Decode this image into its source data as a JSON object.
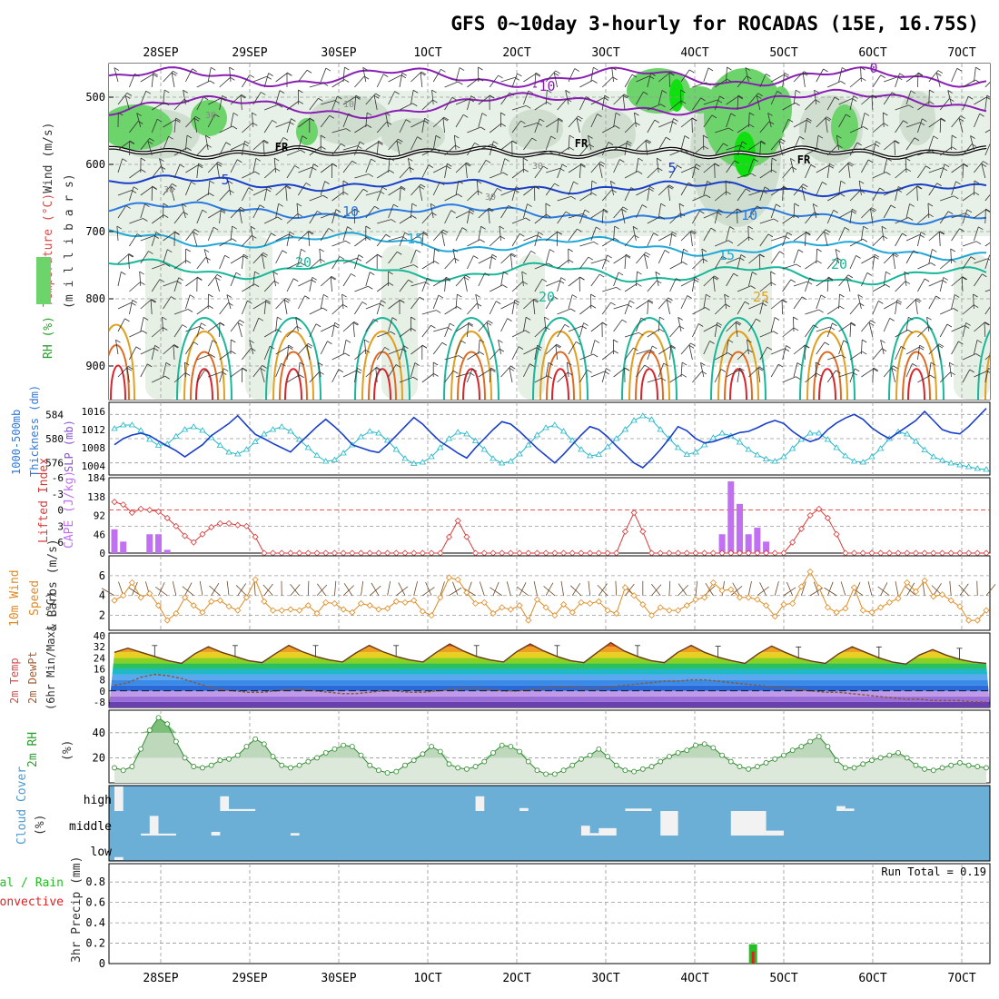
{
  "title": "GFS 0~10day 3-hourly for ROCADAS (15E, 16.75S)",
  "dates": [
    "28SEP",
    "29SEP",
    "30SEP",
    "1OCT",
    "2OCT",
    "3OCT",
    "4OCT",
    "5OCT",
    "6OCT",
    "7OCT"
  ],
  "colors": {
    "purple": "#8a1fb4",
    "blue_dark": "#1a3fc8",
    "blue": "#2a7ae0",
    "cyan": "#22a8d8",
    "teal": "#18b79a",
    "orange": "#e0a020",
    "orange_dark": "#e06a20",
    "red": "#d8242c",
    "rh_light": "#e6efe4",
    "rh_mid": "#cfdccd",
    "rh_green": "#6cd46a",
    "rh_bright": "#10e010",
    "thickness": "#1a3fc8",
    "slp": "#20b8c8",
    "lifted": "#d83a3a",
    "cape": "#c070f0",
    "wind10m": "#e08a20",
    "rh2m": "#2e8b2e",
    "cloud": "#6baed6",
    "precip_total": "#22c022",
    "precip_conv": "#e02020"
  },
  "panels": [
    {
      "id": "upper_air",
      "ylabel_parts": [
        {
          "text": "RH (%)",
          "color": "#2ca02c"
        },
        {
          "text": "Temperature (°C)",
          "color": "#d84c4c"
        },
        {
          "text": "Wind (m/s)",
          "color": "#333333"
        }
      ],
      "ylabel2": "(m i l l i b a r s)",
      "yticks": [
        "500",
        "600",
        "700",
        "800",
        "900"
      ],
      "contour_labels": [
        "-10",
        "0",
        "FR",
        "FR",
        "FR",
        "5",
        "5",
        "10",
        "10",
        "15",
        "15",
        "20",
        "20",
        "20",
        "25",
        "30",
        "30",
        "30",
        "10",
        "30"
      ]
    },
    {
      "id": "thickness_slp",
      "ylabel_left": "1000-500mb",
      "ylabel_left2": "Thickness (dm)",
      "ylabel_right": "SLP (mb)",
      "yticks_left": [
        "584",
        "580",
        "576"
      ],
      "yticks_right": [
        "1016",
        "1012",
        "1008",
        "1004"
      ]
    },
    {
      "id": "lifted_cape",
      "ylabel_left": "Lifted Index",
      "ylabel_right": "CAPE (J/kg)",
      "yticks_left": [
        "-6",
        "-3",
        "0",
        "3",
        "6"
      ],
      "yticks_right": [
        "184",
        "138",
        "92",
        "46",
        "0"
      ]
    },
    {
      "id": "wind10m",
      "ylabel": "10m Wind",
      "ylabel2": "Speed",
      "ylabel3": "& Barbs (m/s)",
      "yticks": [
        "6",
        "4",
        "2"
      ]
    },
    {
      "id": "temp2m",
      "ylabel": "2m Temp",
      "ylabel2": "2m DewPt",
      "ylabel3": "(6hr Min/Max) (°C)",
      "yticks": [
        "40",
        "32",
        "24",
        "16",
        "8",
        "0",
        "-8"
      ]
    },
    {
      "id": "rh2m",
      "ylabel": "2m RH",
      "ylabel2": "(%)",
      "yticks": [
        "40",
        "20"
      ]
    },
    {
      "id": "cloud",
      "ylabel": "Cloud Cover",
      "ylabel2": "(%)",
      "levels": [
        "high",
        "middle",
        "low"
      ]
    },
    {
      "id": "precip",
      "ylabel": "Total / Rain",
      "ylabel2": "Convective",
      "ylabel3": "3hr Precip (mm)",
      "yticks": [
        "0.8",
        "0.6",
        "0.4",
        "0.2",
        "0"
      ],
      "run_total": "Run Total = 0.19"
    }
  ],
  "chart_data": {
    "type": "line",
    "time_step_hours": 3,
    "x_axis": [
      "28SEP",
      "29SEP",
      "30SEP",
      "1OCT",
      "2OCT",
      "3OCT",
      "4OCT",
      "5OCT",
      "6OCT",
      "7OCT"
    ],
    "thickness_dm": [
      579.0,
      580.0,
      580.6,
      580.9,
      580.5,
      579.6,
      578.8,
      578.0,
      577.0,
      578.0,
      579.0,
      580.5,
      581.5,
      582.5,
      583.8,
      582.2,
      580.7,
      580.0,
      579.2,
      578.5,
      577.8,
      579.2,
      580.6,
      582.0,
      583.2,
      582.0,
      580.6,
      579.0,
      578.5,
      578.0,
      577.7,
      579.0,
      580.5,
      582.0,
      583.5,
      582.4,
      580.9,
      579.5,
      578.6,
      577.6,
      576.8,
      578.5,
      580.0,
      581.5,
      582.8,
      582.4,
      581.2,
      579.8,
      578.4,
      577.2,
      576.0,
      577.4,
      579.0,
      580.6,
      582.0,
      581.5,
      580.3,
      578.8,
      577.4,
      576.0,
      575.2,
      576.6,
      578.2,
      580.0,
      582.0,
      581.3,
      580.0,
      579.3,
      579.5,
      580.0,
      580.5,
      581.0,
      581.2,
      581.8,
      582.5,
      583.0,
      582.5,
      581.2,
      580.2,
      579.5,
      580.0,
      581.5,
      582.6,
      583.4,
      584.0,
      583.2,
      581.8,
      580.8,
      580.0,
      581.0,
      582.0,
      583.0,
      584.5,
      583.0,
      581.5,
      581.0,
      580.8,
      582.0,
      583.5,
      585.0
    ],
    "slp_mb": [
      1012.2,
      1013.0,
      1013.0,
      1011.8,
      1009.8,
      1008.5,
      1008.8,
      1010.5,
      1012.0,
      1012.6,
      1011.8,
      1010.2,
      1008.5,
      1007.0,
      1006.6,
      1007.6,
      1009.3,
      1011.0,
      1012.0,
      1012.6,
      1011.6,
      1009.8,
      1008.0,
      1006.3,
      1005.0,
      1005.3,
      1006.8,
      1008.6,
      1010.4,
      1011.6,
      1011.2,
      1009.6,
      1007.6,
      1005.6,
      1004.5,
      1004.8,
      1006.0,
      1008.0,
      1010.0,
      1011.4,
      1011.0,
      1009.5,
      1007.6,
      1005.6,
      1004.6,
      1005.0,
      1006.6,
      1008.6,
      1010.8,
      1012.4,
      1013.0,
      1011.6,
      1009.6,
      1007.6,
      1006.2,
      1006.5,
      1008.2,
      1010.0,
      1012.0,
      1014.0,
      1015.0,
      1014.2,
      1012.0,
      1010.0,
      1008.0,
      1006.5,
      1007.0,
      1008.6,
      1010.2,
      1011.2,
      1010.6,
      1009.2,
      1007.6,
      1006.4,
      1005.5,
      1005.0,
      1006.0,
      1007.8,
      1009.8,
      1011.2,
      1011.2,
      1009.8,
      1008.0,
      1006.2,
      1005.0,
      1004.8,
      1006.0,
      1007.8,
      1010.0,
      1011.5,
      1011.0,
      1009.4,
      1007.5,
      1006.0,
      1005.2,
      1004.6,
      1004.2,
      1003.8,
      1003.4,
      1003.2
    ],
    "lifted_index": [
      -1.5,
      -1.0,
      0.5,
      -0.2,
      0.0,
      0.3,
      1.5,
      3.0,
      4.8,
      6.0,
      4.5,
      3.2,
      2.5,
      2.5,
      2.8,
      3.0,
      5.0,
      8.0,
      8.0,
      8.0,
      8.0,
      8.0,
      8.0,
      8.0,
      8.0,
      8.0,
      8.0,
      8.0,
      8.0,
      8.0,
      8.0,
      8.0,
      8.0,
      8.0,
      8.0,
      8.0,
      8.0,
      8.0,
      5.0,
      2.0,
      5.0,
      8.0,
      8.0,
      8.0,
      8.0,
      8.0,
      8.0,
      8.0,
      8.0,
      8.0,
      8.0,
      8.0,
      8.0,
      8.0,
      8.0,
      8.0,
      8.0,
      8.0,
      4.0,
      0.5,
      4.0,
      8.0,
      8.0,
      8.0,
      8.0,
      8.0,
      8.0,
      8.0,
      8.0,
      8.0,
      8.0,
      8.0,
      8.0,
      8.0,
      8.0,
      8.0,
      8.0,
      6.0,
      3.5,
      1.0,
      -0.2,
      1.5,
      4.5,
      8.0,
      8.0,
      8.0,
      8.0,
      8.0,
      8.0,
      8.0,
      8.0,
      8.0,
      8.0,
      8.0,
      8.0,
      8.0,
      8.0,
      8.0,
      8.0,
      8.0
    ],
    "cape_jkg": [
      {
        "x_index": 0,
        "value": 58
      },
      {
        "x_index": 1,
        "value": 28
      },
      {
        "x_index": 4,
        "value": 46
      },
      {
        "x_index": 5,
        "value": 46
      },
      {
        "x_index": 6,
        "value": 8
      },
      {
        "x_index": 69,
        "value": 46
      },
      {
        "x_index": 70,
        "value": 175
      },
      {
        "x_index": 71,
        "value": 120
      },
      {
        "x_index": 72,
        "value": 46
      },
      {
        "x_index": 73,
        "value": 62
      },
      {
        "x_index": 74,
        "value": 28
      }
    ],
    "wind10m_speed_ms": [
      3.5,
      4.0,
      5.3,
      3.8,
      4.2,
      3.0,
      1.5,
      2.2,
      3.8,
      3.0,
      2.3,
      3.4,
      3.5,
      2.9,
      2.5,
      3.8,
      5.6,
      3.4,
      2.5,
      2.5,
      2.6,
      2.5,
      3.0,
      2.2,
      3.3,
      3.2,
      2.6,
      2.3,
      3.2,
      3.0,
      2.6,
      2.7,
      3.4,
      3.3,
      3.5,
      2.4,
      2.0,
      3.8,
      5.8,
      5.6,
      4.3,
      3.2,
      3.3,
      2.2,
      2.8,
      2.6,
      3.0,
      1.5,
      3.6,
      2.8,
      2.0,
      3.1,
      2.3,
      3.3,
      3.2,
      3.4,
      2.5,
      2.2,
      4.8,
      4.0,
      3.1,
      2.0,
      2.8,
      2.5,
      2.5,
      3.0,
      3.6,
      3.8,
      5.3,
      4.5,
      4.6,
      3.8,
      3.8,
      3.6,
      3.0,
      1.9,
      3.1,
      3.2,
      4.9,
      6.4,
      4.8,
      2.8,
      2.3,
      2.7,
      4.8,
      2.5,
      2.3,
      2.8,
      3.3,
      3.7,
      5.3,
      4.4,
      5.5,
      3.9,
      4.1,
      3.5,
      2.9,
      1.5,
      1.5,
      2.5
    ],
    "temp2m_c": [
      28.0,
      31.0,
      28.0,
      25.0,
      22.0,
      20.0,
      27.0,
      32.0,
      28.0,
      25.0,
      22.0,
      20.5,
      27.0,
      33.0,
      28.5,
      25.0,
      22.5,
      21.0,
      27.5,
      33.0,
      28.5,
      25.0,
      22.5,
      21.0,
      28.0,
      34.0,
      29.0,
      25.0,
      22.5,
      21.0,
      28.5,
      34.0,
      29.0,
      25.0,
      22.0,
      20.5,
      28.0,
      35.0,
      29.0,
      25.0,
      22.0,
      20.5,
      28.0,
      33.0,
      28.0,
      24.5,
      22.0,
      20.0,
      27.0,
      32.5,
      28.0,
      24.0,
      21.5,
      20.0,
      27.0,
      32.0,
      28.0,
      24.0,
      21.0,
      19.5,
      26.0,
      30.0,
      26.0,
      23.0,
      21.0,
      20.0
    ],
    "dewpt2m_c": [
      4.0,
      6.0,
      10.0,
      12.0,
      11.0,
      9.0,
      6.0,
      3.0,
      1.0,
      0.0,
      -1.0,
      -1.0,
      0.0,
      1.0,
      1.0,
      0.0,
      -1.0,
      -2.0,
      -2.0,
      -1.0,
      0.0,
      0.0,
      -1.0,
      -1.0,
      0.0,
      1.0,
      2.0,
      2.0,
      1.0,
      0.0,
      0.0,
      1.0,
      2.0,
      3.0,
      3.0,
      2.0,
      2.0,
      3.0,
      4.0,
      5.0,
      6.0,
      7.0,
      7.0,
      8.0,
      8.0,
      7.0,
      6.0,
      5.0,
      4.0,
      3.0,
      2.0,
      1.0,
      0.0,
      -1.0,
      -1.0,
      -2.0,
      -3.0,
      -4.0,
      -5.0,
      -6.0,
      -6.0,
      -7.0,
      -7.0,
      -7.0,
      -8.0,
      -8.0
    ],
    "rh2m_pct": [
      12,
      10,
      13,
      27,
      42,
      52,
      47,
      33,
      20,
      13,
      12,
      14,
      18,
      19,
      22,
      29,
      35,
      31,
      21,
      14,
      12,
      14,
      17,
      20,
      24,
      27,
      30,
      29,
      22,
      14,
      10,
      8,
      9,
      14,
      18,
      23,
      29,
      25,
      15,
      12,
      11,
      13,
      17,
      24,
      30,
      29,
      25,
      17,
      10,
      7,
      7,
      10,
      14,
      19,
      22,
      27,
      21,
      14,
      10,
      9,
      11,
      13,
      17,
      21,
      24,
      26,
      30,
      31,
      28,
      22,
      17,
      13,
      11,
      13,
      16,
      19,
      22,
      26,
      29,
      33,
      37,
      29,
      18,
      12,
      12,
      15,
      18,
      20,
      22,
      24,
      20,
      14,
      11,
      10,
      12,
      14,
      16,
      14,
      13,
      12
    ],
    "cloud_cover": {
      "levels": [
        "high",
        "middle",
        "low"
      ],
      "blocks": [
        {
          "level": "high",
          "start": 0,
          "end": 1,
          "value": 100
        },
        {
          "level": "high",
          "start": 12,
          "end": 13,
          "value": 60
        },
        {
          "level": "high",
          "start": 13,
          "end": 16,
          "value": 8
        },
        {
          "level": "high",
          "start": 41,
          "end": 42,
          "value": 60
        },
        {
          "level": "high",
          "start": 46,
          "end": 47,
          "value": 12
        },
        {
          "level": "high",
          "start": 58,
          "end": 61,
          "value": 10
        },
        {
          "level": "high",
          "start": 82,
          "end": 83,
          "value": 20
        },
        {
          "level": "high",
          "start": 83,
          "end": 84,
          "value": 10
        },
        {
          "level": "middle",
          "start": 4,
          "end": 5,
          "value": 80
        },
        {
          "level": "middle",
          "start": 3,
          "end": 7,
          "value": 8
        },
        {
          "level": "middle",
          "start": 11,
          "end": 12,
          "value": 15
        },
        {
          "level": "middle",
          "start": 20,
          "end": 21,
          "value": 10
        },
        {
          "level": "middle",
          "start": 53,
          "end": 54,
          "value": 40
        },
        {
          "level": "middle",
          "start": 54,
          "end": 55,
          "value": 10
        },
        {
          "level": "middle",
          "start": 55,
          "end": 57,
          "value": 30
        },
        {
          "level": "middle",
          "start": 62,
          "end": 64,
          "value": 100
        },
        {
          "level": "middle",
          "start": 70,
          "end": 74,
          "value": 100
        },
        {
          "level": "middle",
          "start": 74,
          "end": 76,
          "value": 20
        },
        {
          "level": "low",
          "start": 0,
          "end": 1,
          "value": 12
        }
      ]
    },
    "precip_mm": {
      "total": [
        {
          "x_index": 72,
          "value": 0.19
        }
      ],
      "convective": [
        {
          "x_index": 72,
          "value": 0.19
        }
      ]
    },
    "wind_barbs": "shown"
  }
}
